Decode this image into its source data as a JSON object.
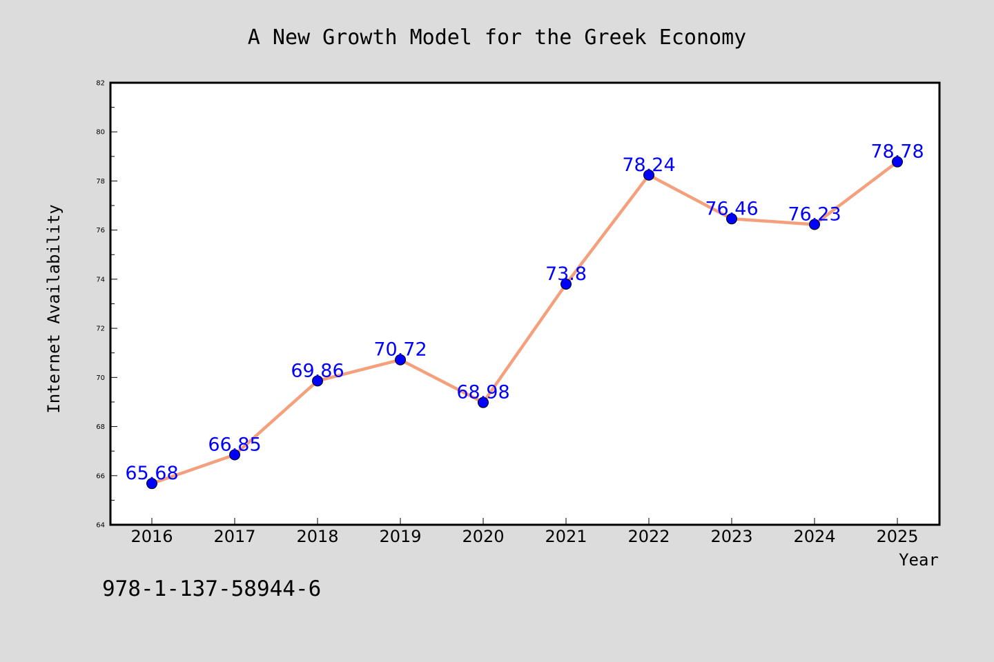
{
  "chart_data": {
    "type": "line",
    "title": "A New Growth Model for the Greek Economy",
    "xlabel": "Year",
    "ylabel": "Internet Availability",
    "categories": [
      "2016",
      "2017",
      "2018",
      "2019",
      "2020",
      "2021",
      "2022",
      "2023",
      "2024",
      "2025"
    ],
    "series": [
      {
        "values": [
          65.68,
          66.85,
          69.86,
          70.72,
          68.98,
          73.8,
          78.24,
          76.46,
          76.23,
          78.78
        ],
        "labels": [
          "65.68",
          "66.85",
          "69.86",
          "70.72",
          "68.98",
          "73.8",
          "78.24",
          "76.46",
          "76.23",
          "78.78"
        ],
        "line_color": "#f4a07c",
        "marker_color": "#0000ff"
      }
    ],
    "ylim": [
      64,
      82
    ],
    "yticks": [
      "64",
      "66",
      "68",
      "70",
      "72",
      "74",
      "76",
      "78",
      "80",
      "82"
    ],
    "grid": false,
    "annotation": "978-1-137-58944-6",
    "background_color": "#dcdcdc",
    "plot_background_color": "#ffffff"
  }
}
